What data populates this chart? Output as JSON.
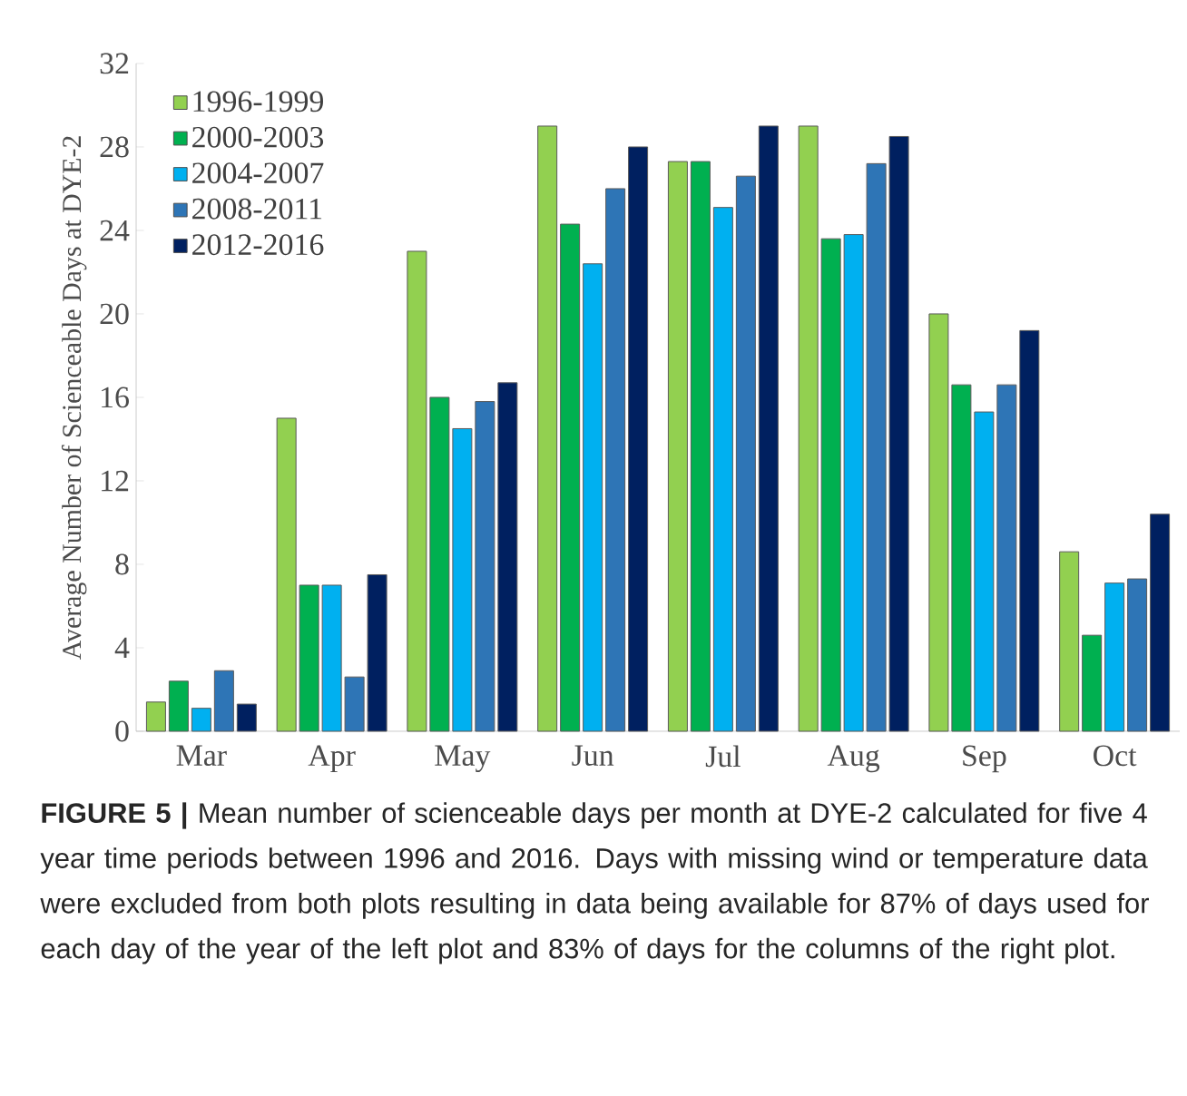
{
  "chart_data": {
    "type": "bar",
    "ylabel": "Average Number of Scienceable Days at DYE-2",
    "categories": [
      "Mar",
      "Apr",
      "May",
      "Jun",
      "Jul",
      "Aug",
      "Sep",
      "Oct"
    ],
    "series": [
      {
        "name": "1996-1999",
        "color": "#92d050",
        "values": [
          1.4,
          15.0,
          23.0,
          29.0,
          27.3,
          29.0,
          20.0,
          8.6
        ]
      },
      {
        "name": "2000-2003",
        "color": "#00b050",
        "values": [
          2.4,
          7.0,
          16.0,
          24.3,
          27.3,
          23.6,
          16.6,
          4.6
        ]
      },
      {
        "name": "2004-2007",
        "color": "#00b0f0",
        "values": [
          1.1,
          7.0,
          14.5,
          22.4,
          25.1,
          23.8,
          15.3,
          7.1
        ]
      },
      {
        "name": "2008-2011",
        "color": "#2e75b6",
        "values": [
          2.9,
          2.6,
          15.8,
          26.0,
          26.6,
          27.2,
          16.6,
          7.3
        ]
      },
      {
        "name": "2012-2016",
        "color": "#002060",
        "values": [
          1.3,
          7.5,
          16.7,
          28.0,
          29.0,
          28.5,
          19.2,
          10.4
        ]
      }
    ],
    "ylim": [
      0,
      32
    ],
    "yticks": [
      0,
      4,
      8,
      12,
      16,
      20,
      24,
      28,
      32
    ],
    "grid": false,
    "legend": "top left",
    "annotations": [
      "**FIGURE 5 |** Mean number of scienceable days per month at DYE-2 calculated for five 4 year time periods between 1996 and 2016. Days with missing wind or temperature data were excluded from both plots resulting in data being available for 87% of days used for each day of the year of the left plot and 83% of days for the columns of the right plot."
    ]
  }
}
